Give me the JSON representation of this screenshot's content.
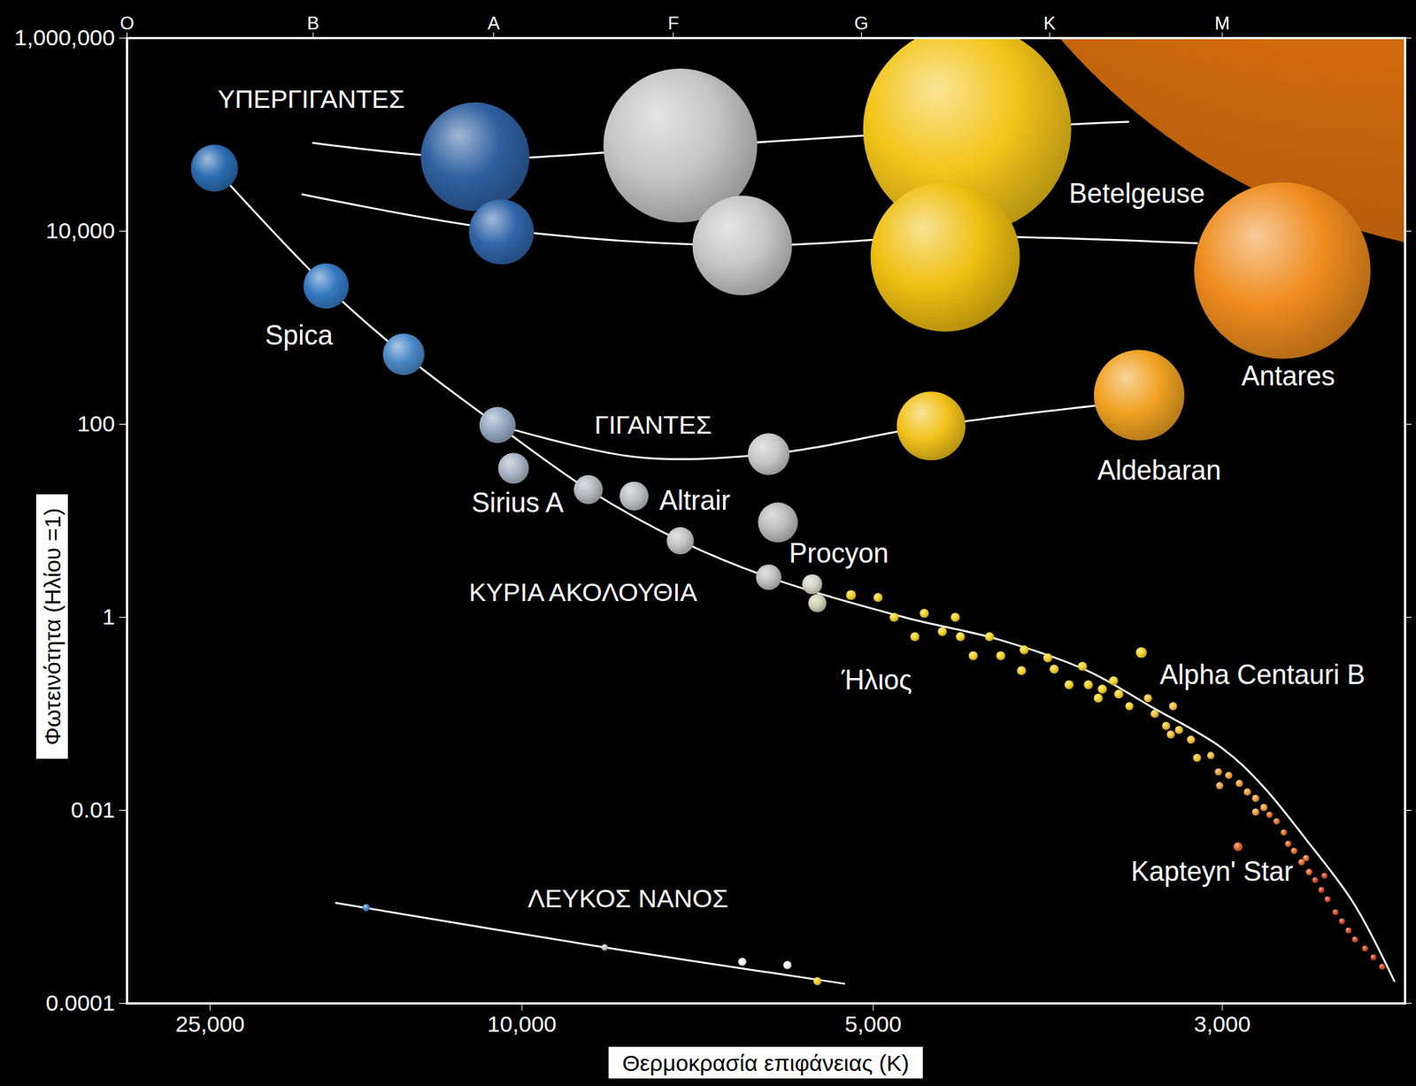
{
  "chart_data": {
    "type": "scatter",
    "x_label": "Θερμοκρασία επιφάνειας (K)",
    "y_label": "Φωτεινότητα (Ηλίου =1)",
    "log": "y",
    "xlim": [
      35000,
      2400
    ],
    "xticks": [
      {
        "value": 25000,
        "label": "25,000"
      },
      {
        "value": 10000,
        "label": "10,000"
      },
      {
        "value": 5000,
        "label": "5,000"
      },
      {
        "value": 3000,
        "label": "3,000"
      }
    ],
    "x2ticks": [
      {
        "value": 35000,
        "label": "O"
      },
      {
        "value": 17600,
        "label": "B"
      },
      {
        "value": 10700,
        "label": "A"
      },
      {
        "value": 7200,
        "label": "F"
      },
      {
        "value": 5100,
        "label": "G"
      },
      {
        "value": 3800,
        "label": "K"
      },
      {
        "value": 3000,
        "label": "M"
      }
    ],
    "ylim": [
      0.0001,
      1000000
    ],
    "yticks": [
      0.0001,
      0.01,
      1,
      100,
      {
        "value": 10000,
        "label": "10,000"
      },
      {
        "value": 1000000,
        "label": "1,000,000"
      }
    ],
    "series": [
      {
        "name": "ΥΠΕΡΓΙΓΑΝΤΕΣ",
        "type": "line",
        "color": "#ffffff",
        "x": [
          17600,
          11200,
          7100,
          4300,
          3400,
          null,
          18200,
          10500,
          6300,
          4400,
          3100
        ],
        "y": [
          82000,
          57000,
          74000,
          114000,
          136000,
          null,
          24000,
          10400,
          7100,
          8800,
          7500
        ],
        "label_x": 17700,
        "label_y": 230000
      },
      {
        "name": "ΓΙΓΑΝΤΕΣ",
        "type": "line",
        "color": "#ffffff",
        "x": [
          10600,
          7800,
          6000,
          4550,
          3350
        ],
        "y": [
          98,
          46,
          49,
          96,
          175
        ],
        "label_x": 7500,
        "label_y": 98
      },
      {
        "name": "ΚΥΡΙΑ ΑΚΟΛΟΥΘΙΑ",
        "type": "line",
        "color": "#ffffff",
        "x": [
          24600,
          16900,
          13500,
          10600,
          8600,
          7100,
          6000,
          4750,
          4100,
          3600,
          3300,
          3000,
          2850,
          2700,
          2550,
          2430
        ],
        "y": [
          45000,
          2700,
          530,
          98,
          21,
          6.2,
          2.6,
          1,
          0.59,
          0.28,
          0.12,
          0.044,
          0.018,
          0.005,
          0.0011,
          0.00017
        ],
        "label_x": 8700,
        "label_y": 1.8
      },
      {
        "name": "ΛΕΥΚΟΣ ΝΑΝΟΣ",
        "type": "line",
        "color": "#ffffff",
        "x": [
          16400,
          8300,
          5250
        ],
        "y": [
          0.0011,
          0.00038,
          0.00016
        ],
        "label_x": 7900,
        "label_y": 0.0012
      }
    ],
    "stars": [
      {
        "x": 24600,
        "y": 45000,
        "size": 5.2,
        "color": "#2b6cb0"
      },
      {
        "name": "Spica",
        "x": 16900,
        "y": 2700,
        "size": 5.0,
        "color": "#3479c0",
        "label_x": 18400,
        "label_y": 820
      },
      {
        "x": 13500,
        "y": 530,
        "size": 4.6,
        "color": "#4a88c8"
      },
      {
        "x": 10600,
        "y": 98,
        "size": 4.0,
        "color": "#93a8c0"
      },
      {
        "name": "Sirius A",
        "x": 10200,
        "y": 35,
        "size": 3.4,
        "color": "#a8b4c4",
        "label_x": 10100,
        "label_y": 15
      },
      {
        "x": 8600,
        "y": 21,
        "size": 3.2,
        "color": "#b4b9c0"
      },
      {
        "name": "Altrair",
        "x": 7800,
        "y": 18,
        "size": 3.2,
        "color": "#bcbec2",
        "label_x": 6900,
        "label_y": 16
      },
      {
        "x": 7100,
        "y": 6.2,
        "size": 3.0,
        "color": "#c4c4c4"
      },
      {
        "name": "Procyon",
        "x": 5900,
        "y": 9.6,
        "size": 4.4,
        "color": "#bcbcbc",
        "label_x": 5300,
        "label_y": 4.5
      },
      {
        "x": 6000,
        "y": 2.6,
        "size": 2.8,
        "color": "#c0c0c0"
      },
      {
        "x": 5550,
        "y": 2.2,
        "size": 2.2,
        "color": "#d4d4c4"
      },
      {
        "x": 5500,
        "y": 1.4,
        "size": 2.0,
        "color": "#d0d0b4"
      },
      {
        "x": 6000,
        "y": 49,
        "size": 4.6,
        "color": "#c8c8c8"
      },
      {
        "x": 4550,
        "y": 96,
        "size": 7.6,
        "color": "#f2c21c"
      },
      {
        "name": "Aldebaran",
        "x": 3350,
        "y": 200,
        "size": 10.0,
        "color": "#f0a222",
        "label_x": 3260,
        "label_y": 33
      },
      {
        "x": 11200,
        "y": 59000,
        "size": 12,
        "color": "#2e5f9f"
      },
      {
        "x": 10500,
        "y": 9800,
        "size": 7.2,
        "color": "#3064a8"
      },
      {
        "x": 7100,
        "y": 77000,
        "size": 17,
        "color": "#c6c6c6"
      },
      {
        "x": 6300,
        "y": 7100,
        "size": 11,
        "color": "#c8c8c8"
      },
      {
        "x": 4300,
        "y": 114000,
        "size": 23,
        "color": "#f4c51a"
      },
      {
        "x": 4450,
        "y": 5400,
        "size": 16.5,
        "color": "#f0c012"
      },
      {
        "name": "Antares",
        "x": 2780,
        "y": 3900,
        "size": 19.5,
        "color": "#ef8c1e",
        "label_x": 2760,
        "label_y": 310
      },
      {
        "name": "Betelgeuse",
        "x": 2070,
        "y": 20000000000,
        "size": 140,
        "color": "#e8760e",
        "label_x": 3360,
        "label_y": 24000
      },
      {
        "name": "Ήλιος",
        "x": 4830,
        "y": 1,
        "size": 1.0,
        "color": "#f5d32a",
        "label_x": 4970,
        "label_y": 0.22
      },
      {
        "name": "Alpha Centauri B",
        "x": 3340,
        "y": 0.43,
        "size": 1.2,
        "color": "#f5d32a",
        "label_x": 2850,
        "label_y": 0.25
      },
      {
        "name": "Kapteyn' Star",
        "x": 2940,
        "y": 0.0042,
        "size": 1.0,
        "color": "#e0682a",
        "label_x": 3040,
        "label_y": 0.0023
      },
      {
        "x": 15000,
        "y": 0.00098,
        "size": 0.8,
        "color": "#4a88c8"
      },
      {
        "x": 8300,
        "y": 0.00038,
        "size": 0.7,
        "color": "#c8c8c8"
      },
      {
        "x": 6300,
        "y": 0.00027,
        "size": 0.9,
        "color": "#ffffff"
      },
      {
        "x": 5800,
        "y": 0.00025,
        "size": 0.9,
        "color": "#ffffff"
      },
      {
        "x": 5500,
        "y": 0.00017,
        "size": 0.9,
        "color": "#f5d32a"
      },
      {
        "x": 5190,
        "y": 1.7,
        "size": 1.1,
        "color": "#f5d32a"
      },
      {
        "x": 4960,
        "y": 1.6,
        "size": 1.0,
        "color": "#f5d32a"
      },
      {
        "x": 4670,
        "y": 0.63,
        "size": 1.0,
        "color": "#f5d32a"
      },
      {
        "x": 4600,
        "y": 1.1,
        "size": 1.0,
        "color": "#f5d32a"
      },
      {
        "x": 4470,
        "y": 0.71,
        "size": 1.0,
        "color": "#f5d32a"
      },
      {
        "x": 4380,
        "y": 1.0,
        "size": 1.0,
        "color": "#f5d32a"
      },
      {
        "x": 4345,
        "y": 0.63,
        "size": 1.0,
        "color": "#f5d32a"
      },
      {
        "x": 4260,
        "y": 0.4,
        "size": 1.0,
        "color": "#f5d32a"
      },
      {
        "x": 4155,
        "y": 0.63,
        "size": 1.0,
        "color": "#f5d32a"
      },
      {
        "x": 4085,
        "y": 0.4,
        "size": 1.0,
        "color": "#f5d32a"
      },
      {
        "x": 3960,
        "y": 0.28,
        "size": 1.0,
        "color": "#f5d32a"
      },
      {
        "x": 3945,
        "y": 0.46,
        "size": 1.0,
        "color": "#f5d32a"
      },
      {
        "x": 3810,
        "y": 0.38,
        "size": 1.0,
        "color": "#f5d32a"
      },
      {
        "x": 3775,
        "y": 0.29,
        "size": 1.0,
        "color": "#f5d32a"
      },
      {
        "x": 3695,
        "y": 0.2,
        "size": 1.0,
        "color": "#f5d32a"
      },
      {
        "x": 3625,
        "y": 0.31,
        "size": 1.0,
        "color": "#f5d32a"
      },
      {
        "x": 3595,
        "y": 0.2,
        "size": 1.0,
        "color": "#f5d32a"
      },
      {
        "x": 3545,
        "y": 0.145,
        "size": 1.0,
        "color": "#f5d32a"
      },
      {
        "x": 3525,
        "y": 0.18,
        "size": 1.0,
        "color": "#f5d32a"
      },
      {
        "x": 3470,
        "y": 0.22,
        "size": 1.0,
        "color": "#f5d32a"
      },
      {
        "x": 3445,
        "y": 0.16,
        "size": 1.0,
        "color": "#f5d32a"
      },
      {
        "x": 3395,
        "y": 0.12,
        "size": 0.9,
        "color": "#f5d32a"
      },
      {
        "x": 3310,
        "y": 0.145,
        "size": 0.9,
        "color": "#f6c23a"
      },
      {
        "x": 3280,
        "y": 0.1,
        "size": 0.9,
        "color": "#f6c23a"
      },
      {
        "x": 3230,
        "y": 0.075,
        "size": 0.9,
        "color": "#f6c23a"
      },
      {
        "x": 3200,
        "y": 0.12,
        "size": 0.9,
        "color": "#f6c23a"
      },
      {
        "x": 3210,
        "y": 0.061,
        "size": 0.9,
        "color": "#f6c23a"
      },
      {
        "x": 3175,
        "y": 0.068,
        "size": 0.9,
        "color": "#f6c23a"
      },
      {
        "x": 3125,
        "y": 0.054,
        "size": 0.9,
        "color": "#f6c23a"
      },
      {
        "x": 3100,
        "y": 0.035,
        "size": 0.9,
        "color": "#f6c23a"
      },
      {
        "x": 3045,
        "y": 0.037,
        "size": 0.8,
        "color": "#f6c23a"
      },
      {
        "x": 3015,
        "y": 0.025,
        "size": 0.8,
        "color": "#f0a040"
      },
      {
        "x": 3010,
        "y": 0.018,
        "size": 0.8,
        "color": "#f0a040"
      },
      {
        "x": 2975,
        "y": 0.023,
        "size": 0.8,
        "color": "#f0a040"
      },
      {
        "x": 2935,
        "y": 0.019,
        "size": 0.8,
        "color": "#f0a040"
      },
      {
        "x": 2905,
        "y": 0.0155,
        "size": 0.8,
        "color": "#f0a040"
      },
      {
        "x": 2875,
        "y": 0.0133,
        "size": 0.8,
        "color": "#f0a040"
      },
      {
        "x": 2875,
        "y": 0.0096,
        "size": 0.8,
        "color": "#f0a040"
      },
      {
        "x": 2845,
        "y": 0.0107,
        "size": 0.8,
        "color": "#f0a040"
      },
      {
        "x": 2825,
        "y": 0.009,
        "size": 0.7,
        "color": "#e8732e"
      },
      {
        "x": 2800,
        "y": 0.0077,
        "size": 0.7,
        "color": "#e8732e"
      },
      {
        "x": 2775,
        "y": 0.0059,
        "size": 0.7,
        "color": "#e8732e"
      },
      {
        "x": 2760,
        "y": 0.0045,
        "size": 0.7,
        "color": "#e8732e"
      },
      {
        "x": 2740,
        "y": 0.0038,
        "size": 0.7,
        "color": "#e8732e"
      },
      {
        "x": 2700,
        "y": 0.0032,
        "size": 0.7,
        "color": "#e8732e"
      },
      {
        "x": 2715,
        "y": 0.0029,
        "size": 0.7,
        "color": "#e8732e"
      },
      {
        "x": 2690,
        "y": 0.0023,
        "size": 0.7,
        "color": "#e8732e"
      },
      {
        "x": 2670,
        "y": 0.0019,
        "size": 0.65,
        "color": "#d9502a"
      },
      {
        "x": 2640,
        "y": 0.0021,
        "size": 0.65,
        "color": "#d9502a"
      },
      {
        "x": 2650,
        "y": 0.0015,
        "size": 0.65,
        "color": "#d9502a"
      },
      {
        "x": 2630,
        "y": 0.0012,
        "size": 0.65,
        "color": "#d9502a"
      },
      {
        "x": 2605,
        "y": 0.00088,
        "size": 0.65,
        "color": "#d9502a"
      },
      {
        "x": 2585,
        "y": 0.00071,
        "size": 0.65,
        "color": "#d9502a"
      },
      {
        "x": 2565,
        "y": 0.00057,
        "size": 0.65,
        "color": "#d9502a"
      },
      {
        "x": 2545,
        "y": 0.00046,
        "size": 0.65,
        "color": "#d9502a"
      },
      {
        "x": 2515,
        "y": 0.00037,
        "size": 0.65,
        "color": "#d9502a"
      },
      {
        "x": 2490,
        "y": 0.0003,
        "size": 0.65,
        "color": "#d9502a"
      },
      {
        "x": 2465,
        "y": 0.00024,
        "size": 0.65,
        "color": "#d9502a"
      }
    ]
  }
}
